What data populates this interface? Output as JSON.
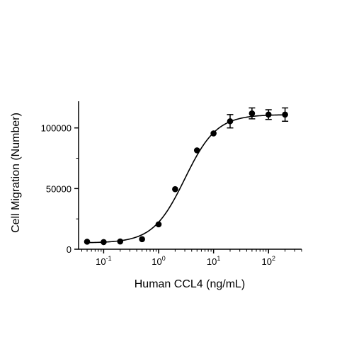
{
  "chart_data": {
    "type": "scatter",
    "title": "",
    "xlabel": "Human CCL4 (ng/mL)",
    "ylabel": "Cell Migration (Number)",
    "x_scale": "log",
    "xlim": [
      0.035,
      400
    ],
    "ylim": [
      0,
      122000
    ],
    "x_ticks": [
      {
        "value": 0.1,
        "base": "10",
        "exp": "-1"
      },
      {
        "value": 1,
        "base": "10",
        "exp": "0"
      },
      {
        "value": 10,
        "base": "10",
        "exp": "1"
      },
      {
        "value": 100,
        "base": "10",
        "exp": "2"
      }
    ],
    "y_ticks": [
      {
        "value": 0,
        "label": "0"
      },
      {
        "value": 50000,
        "label": "50000"
      },
      {
        "value": 100000,
        "label": "100000"
      }
    ],
    "grid": false,
    "series": [
      {
        "points": [
          {
            "x": 0.05,
            "y": 6200,
            "err": 0
          },
          {
            "x": 0.1,
            "y": 5900,
            "err": 0
          },
          {
            "x": 0.2,
            "y": 6400,
            "err": 0
          },
          {
            "x": 0.5,
            "y": 8300,
            "err": 0
          },
          {
            "x": 1,
            "y": 20500,
            "err": 0
          },
          {
            "x": 2,
            "y": 49500,
            "err": 0
          },
          {
            "x": 5,
            "y": 81500,
            "err": 0
          },
          {
            "x": 10,
            "y": 95500,
            "err": 0
          },
          {
            "x": 20,
            "y": 105500,
            "err": 5500
          },
          {
            "x": 50,
            "y": 112000,
            "err": 4500
          },
          {
            "x": 100,
            "y": 111000,
            "err": 4000
          },
          {
            "x": 200,
            "y": 111000,
            "err": 5500
          }
        ],
        "fit": {
          "bottom": 5200,
          "top": 111000,
          "ec50": 3.0,
          "hill": 1.5
        }
      }
    ],
    "colors": {
      "axis": "#000000",
      "points": "#000000"
    }
  }
}
